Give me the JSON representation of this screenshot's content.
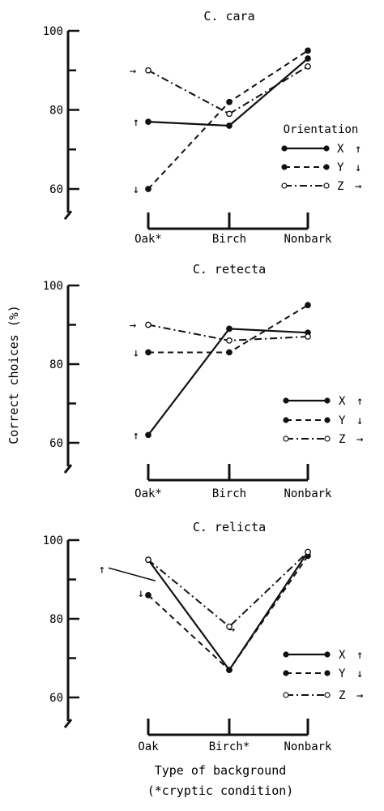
{
  "figure": {
    "ylabel": "Correct choices (%)",
    "xlabel_line1": "Type of background",
    "xlabel_line2": "(*cryptic condition)"
  },
  "chart_data": [
    {
      "type": "line",
      "title": "C. cara",
      "categories": [
        "Oak*",
        "Birch",
        "Nonbark"
      ],
      "yticks": [
        60,
        80,
        100
      ],
      "ylim": [
        54,
        100
      ],
      "legend_title": "Orientation",
      "legend_position": "right",
      "series": [
        {
          "name": "X",
          "style": "solid",
          "marker": "filled",
          "values": [
            77,
            76,
            93
          ]
        },
        {
          "name": "Y",
          "style": "dashed",
          "marker": "filled",
          "values": [
            60,
            82,
            95
          ]
        },
        {
          "name": "Z",
          "style": "dashdot",
          "marker": "open",
          "values": [
            90,
            79,
            91
          ]
        }
      ]
    },
    {
      "type": "line",
      "title": "C. retecta",
      "categories": [
        "Oak*",
        "Birch",
        "Nonbark"
      ],
      "yticks": [
        60,
        80,
        100
      ],
      "ylim": [
        54,
        100
      ],
      "legend_title": "",
      "legend_position": "right",
      "series": [
        {
          "name": "X",
          "style": "solid",
          "marker": "filled",
          "values": [
            62,
            89,
            88
          ]
        },
        {
          "name": "Y",
          "style": "dashed",
          "marker": "filled",
          "values": [
            83,
            83,
            95
          ]
        },
        {
          "name": "Z",
          "style": "dashdot",
          "marker": "open",
          "values": [
            90,
            86,
            87
          ]
        }
      ]
    },
    {
      "type": "line",
      "title": "C. relicta",
      "categories": [
        "Oak",
        "Birch*",
        "Nonbark"
      ],
      "yticks": [
        60,
        80,
        100
      ],
      "ylim": [
        54,
        100
      ],
      "legend_title": "",
      "legend_position": "right",
      "series": [
        {
          "name": "X",
          "style": "solid",
          "marker": "filled",
          "values": [
            95,
            67,
            97
          ]
        },
        {
          "name": "Y",
          "style": "dashed",
          "marker": "filled",
          "values": [
            86,
            67,
            96
          ]
        },
        {
          "name": "Z",
          "style": "dashdot",
          "marker": "open",
          "values": [
            95,
            78,
            97
          ]
        }
      ]
    }
  ]
}
